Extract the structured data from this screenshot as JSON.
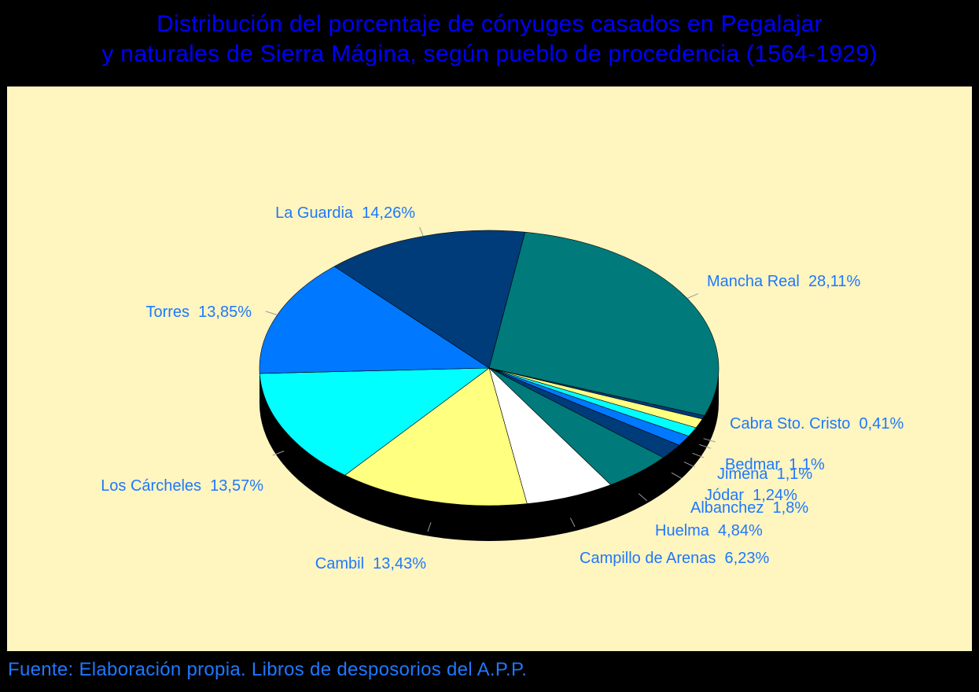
{
  "chart_data": {
    "type": "pie",
    "title_lines": [
      "Distribución del porcentaje de cónyuges casados en Pegalajar",
      "y naturales de Sierra Mágina, según pueblo de procedencia (1564-1929)"
    ],
    "slices": [
      {
        "name": "Mancha Real",
        "value_label": "28,11%",
        "value": 28.11,
        "color": "#007a7a"
      },
      {
        "name": "Cabra Sto. Cristo",
        "value_label": "0,41%",
        "value": 0.41,
        "color": "#003b7a"
      },
      {
        "name": "Bedmar",
        "value_label": "1,1%",
        "value": 1.1,
        "color": "#ffff80"
      },
      {
        "name": "Jimena",
        "value_label": "1,1%",
        "value": 1.1,
        "color": "#00ffff"
      },
      {
        "name": "Jódar",
        "value_label": "1,24%",
        "value": 1.24,
        "color": "#0078ff"
      },
      {
        "name": "Albanchez",
        "value_label": "1,8%",
        "value": 1.8,
        "color": "#003b7a"
      },
      {
        "name": "Huelma",
        "value_label": "4,84%",
        "value": 4.84,
        "color": "#007a7a"
      },
      {
        "name": "Campillo de Arenas",
        "value_label": "6,23%",
        "value": 6.23,
        "color": "#ffffff"
      },
      {
        "name": "Cambil",
        "value_label": "13,43%",
        "value": 13.43,
        "color": "#ffff80"
      },
      {
        "name": "Los Cárcheles",
        "value_label": "13,57%",
        "value": 13.57,
        "color": "#00ffff"
      },
      {
        "name": "Torres",
        "value_label": "13,85%",
        "value": 13.85,
        "color": "#0078ff"
      },
      {
        "name": "La Guardia",
        "value_label": "14,26%",
        "value": 14.26,
        "color": "#003b7a"
      }
    ],
    "legend": "none",
    "style": "3d-pie"
  },
  "footer": {
    "source": "Fuente: Elaboración propia. Libros de desposorios del A.P.P."
  },
  "colors": {
    "background": "#000000",
    "plot_area": "#fff5bf",
    "title": "#0000ff",
    "labels": "#1e78ff"
  }
}
